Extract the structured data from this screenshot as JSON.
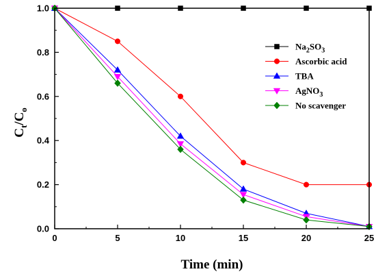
{
  "chart_data": {
    "type": "line",
    "xlabel": "Time (min)",
    "ylabel": {
      "main": "C",
      "sub1": "t",
      "mid": "/C",
      "sub2": "o"
    },
    "xlim": [
      0,
      25
    ],
    "ylim": [
      0,
      1.0
    ],
    "x_ticks": [
      "0",
      "5",
      "10",
      "15",
      "20",
      "25"
    ],
    "y_ticks": [
      "0.0",
      "0.2",
      "0.4",
      "0.6",
      "0.8",
      "1.0"
    ],
    "x": [
      0,
      5,
      10,
      15,
      20,
      25
    ],
    "grid": false,
    "legend_position": "top-right",
    "series": [
      {
        "name": "Na2SO3",
        "legend": {
          "p1": "Na",
          "s1": "2",
          "p2": "SO",
          "s2": "3"
        },
        "color": "#000000",
        "marker": "square",
        "values": [
          1.0,
          1.0,
          1.0,
          1.0,
          1.0,
          1.0
        ]
      },
      {
        "name": "Ascorbic acid",
        "legend": {
          "p1": "Ascorbic acid"
        },
        "color": "#ff0000",
        "marker": "circle",
        "values": [
          1.0,
          0.85,
          0.6,
          0.3,
          0.2,
          0.2
        ]
      },
      {
        "name": "TBA",
        "legend": {
          "p1": "TBA"
        },
        "color": "#0000ff",
        "marker": "triangle-up",
        "values": [
          1.0,
          0.72,
          0.42,
          0.18,
          0.07,
          0.01
        ]
      },
      {
        "name": "AgNO3",
        "legend": {
          "p1": "AgNO",
          "s1": "3"
        },
        "color": "#ff00ff",
        "marker": "triangle-down",
        "values": [
          1.0,
          0.69,
          0.385,
          0.155,
          0.055,
          0.01
        ]
      },
      {
        "name": "No scavenger",
        "legend": {
          "p1": "No scavenger"
        },
        "color": "#008000",
        "marker": "diamond",
        "values": [
          1.0,
          0.66,
          0.36,
          0.13,
          0.04,
          0.01
        ]
      }
    ]
  }
}
